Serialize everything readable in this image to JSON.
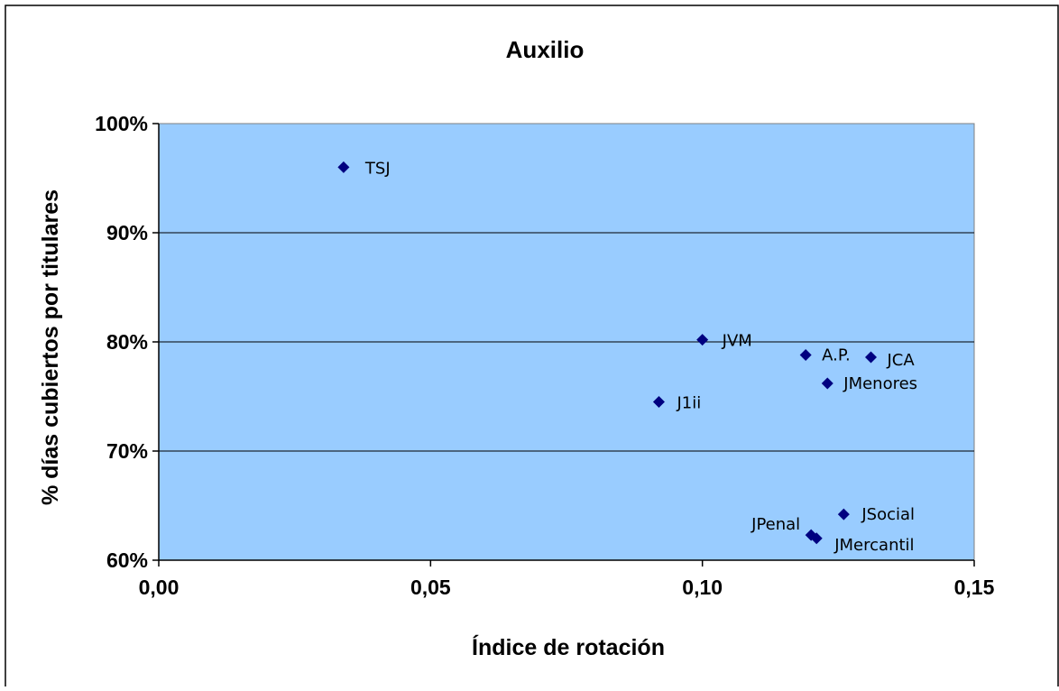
{
  "chart_data": {
    "type": "scatter",
    "title": "Auxilio",
    "xlabel": "Índice de rotación",
    "ylabel": "% días cubiertos por titulares",
    "xlim": [
      0,
      0.15
    ],
    "ylim": [
      0.6,
      1.0
    ],
    "x_ticks": [
      {
        "value": 0.0,
        "label": "0,00"
      },
      {
        "value": 0.05,
        "label": "0,05"
      },
      {
        "value": 0.1,
        "label": "0,10"
      },
      {
        "value": 0.15,
        "label": "0,15"
      }
    ],
    "y_ticks": [
      {
        "value": 0.6,
        "label": "60%"
      },
      {
        "value": 0.7,
        "label": "70%"
      },
      {
        "value": 0.8,
        "label": "80%"
      },
      {
        "value": 0.9,
        "label": "90%"
      },
      {
        "value": 1.0,
        "label": "100%"
      }
    ],
    "grid": {
      "horizontal": true,
      "vertical": false
    },
    "colors": {
      "plot_background": "#99ccff",
      "marker": "#000080",
      "gridline": "#000000"
    },
    "points": [
      {
        "label": "TSJ",
        "x": 0.034,
        "y": 0.96
      },
      {
        "label": "JVM",
        "x": 0.1,
        "y": 0.802
      },
      {
        "label": "A.P.",
        "x": 0.119,
        "y": 0.788
      },
      {
        "label": "JCA",
        "x": 0.131,
        "y": 0.786
      },
      {
        "label": "JMenores",
        "x": 0.123,
        "y": 0.762
      },
      {
        "label": "J1ii",
        "x": 0.092,
        "y": 0.745
      },
      {
        "label": "JSocial",
        "x": 0.126,
        "y": 0.642
      },
      {
        "label": "JPenal",
        "x": 0.12,
        "y": 0.623
      },
      {
        "label": "JMercantil",
        "x": 0.121,
        "y": 0.62
      }
    ]
  }
}
